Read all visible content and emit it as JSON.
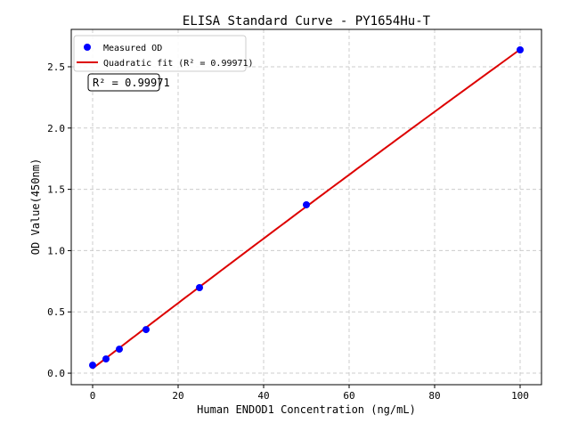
{
  "chart_data": {
    "type": "scatter",
    "title": "ELISA Standard Curve - PY1654Hu-T",
    "xlabel": "Human ENDOD1 Concentration (ng/mL)",
    "ylabel": "OD Value(450nm)",
    "xlim": [
      -5,
      105
    ],
    "ylim": [
      -0.094,
      2.805
    ],
    "xticks": [
      0,
      20,
      40,
      60,
      80,
      100
    ],
    "yticks": [
      0.0,
      0.5,
      1.0,
      1.5,
      2.0,
      2.5
    ],
    "xtick_labels": [
      "0",
      "20",
      "40",
      "60",
      "80",
      "100"
    ],
    "ytick_labels": [
      "0.0",
      "0.5",
      "1.0",
      "1.5",
      "2.0",
      "2.5"
    ],
    "grid": true,
    "legend_placement": "top-left",
    "series": [
      {
        "name": "Measured OD",
        "kind": "scatter",
        "color": "#0000ff",
        "x": [
          0,
          3.125,
          6.25,
          12.5,
          25,
          50,
          100
        ],
        "y": [
          0.065,
          0.116,
          0.196,
          0.356,
          0.698,
          1.374,
          2.638
        ]
      },
      {
        "name": "Quadratic fit (R² = 0.99971)",
        "kind": "line",
        "color": "#dd0000",
        "fit": "quadratic"
      }
    ],
    "annotation": "R² = 0.99971"
  }
}
